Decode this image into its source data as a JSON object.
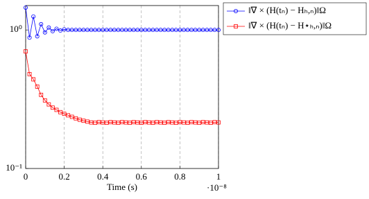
{
  "chart_data": {
    "type": "line",
    "x_label": "Time (s)",
    "x_multiplier": "·10⁻⁸",
    "x": [
      0,
      0.02,
      0.04,
      0.06,
      0.08,
      0.1,
      0.12,
      0.14,
      0.16,
      0.18,
      0.2,
      0.22,
      0.24,
      0.26,
      0.28,
      0.3,
      0.32,
      0.34,
      0.36,
      0.38,
      0.4,
      0.42,
      0.44,
      0.46,
      0.48,
      0.5,
      0.52,
      0.54,
      0.56,
      0.58,
      0.6,
      0.62,
      0.64,
      0.66,
      0.68,
      0.7,
      0.72,
      0.74,
      0.76,
      0.78,
      0.8,
      0.82,
      0.84,
      0.86,
      0.88,
      0.9,
      0.92,
      0.94,
      0.96,
      0.98,
      1
    ],
    "series": [
      {
        "name": "‖∇ × (H(tₙ) − Hₕ,ₙ)‖Ω",
        "color": "#0000ff",
        "marker": "circle",
        "values": [
          1.45,
          0.88,
          1.25,
          0.9,
          1.1,
          0.96,
          1.04,
          0.98,
          1.02,
          0.99,
          1.01,
          1.0,
          1.0,
          1.0,
          1.0,
          1.0,
          1.0,
          1.0,
          1.0,
          1.0,
          1.0,
          1.0,
          1.0,
          1.0,
          1.0,
          1.0,
          1.0,
          1.0,
          1.0,
          1.0,
          1.0,
          1.0,
          1.0,
          1.0,
          1.0,
          1.0,
          1.0,
          1.0,
          1.0,
          1.0,
          1.0,
          1.0,
          1.0,
          1.0,
          1.0,
          1.0,
          1.0,
          1.0,
          1.0,
          1.0,
          1.0
        ]
      },
      {
        "name": "‖∇ × (H(tₙ) − H⋆ₕ,ₙ)‖Ω",
        "color": "#ff0000",
        "marker": "square",
        "values": [
          0.7,
          0.48,
          0.44,
          0.39,
          0.34,
          0.31,
          0.29,
          0.275,
          0.265,
          0.255,
          0.248,
          0.242,
          0.236,
          0.23,
          0.225,
          0.221,
          0.218,
          0.215,
          0.214,
          0.216,
          0.215,
          0.214,
          0.216,
          0.215,
          0.214,
          0.216,
          0.215,
          0.214,
          0.216,
          0.215,
          0.214,
          0.216,
          0.215,
          0.214,
          0.216,
          0.215,
          0.214,
          0.216,
          0.215,
          0.214,
          0.216,
          0.215,
          0.214,
          0.216,
          0.215,
          0.214,
          0.216,
          0.215,
          0.214,
          0.216,
          0.215
        ]
      }
    ],
    "xlim": [
      0,
      1
    ],
    "xticks": [
      0,
      0.2,
      0.4,
      0.6,
      0.8,
      1
    ],
    "ylim": [
      0.1,
      1.5
    ],
    "yticks": [
      {
        "value": 0.1,
        "label": "10⁻¹"
      },
      {
        "value": 1,
        "label": "10⁰"
      }
    ],
    "log_scale_y": true,
    "grid_x": true,
    "legend": "outside-right"
  }
}
